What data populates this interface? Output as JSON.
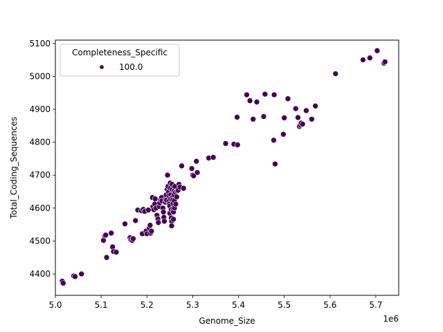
{
  "chart_data": {
    "type": "scatter",
    "xlabel": "Genome_Size",
    "ylabel": "Total_Coding_Sequences",
    "x_offset_label": "1e6",
    "xlim": [
      5.0,
      5.75
    ],
    "ylim": [
      4335,
      5110
    ],
    "x_ticks": [
      "5.0",
      "5.1",
      "5.2",
      "5.3",
      "5.4",
      "5.5",
      "5.6",
      "5.7"
    ],
    "y_ticks": [
      "4400",
      "4500",
      "4600",
      "4700",
      "4800",
      "4900",
      "5000",
      "5100"
    ],
    "grid": false,
    "legend": {
      "title": "Completeness_Specific",
      "placement": "top-left",
      "entries": [
        {
          "label": "100.0",
          "color": "#440154"
        }
      ]
    },
    "series": [
      {
        "name": "100.0",
        "color": "#440154",
        "points": [
          [
            5.015,
            4378
          ],
          [
            5.017,
            4372
          ],
          [
            5.04,
            4394
          ],
          [
            5.043,
            4392
          ],
          [
            5.057,
            4400
          ],
          [
            5.105,
            4502
          ],
          [
            5.108,
            4516
          ],
          [
            5.11,
            4518
          ],
          [
            5.112,
            4450
          ],
          [
            5.122,
            4524
          ],
          [
            5.125,
            4482
          ],
          [
            5.127,
            4468
          ],
          [
            5.133,
            4466
          ],
          [
            5.152,
            4552
          ],
          [
            5.163,
            4510
          ],
          [
            5.165,
            4504
          ],
          [
            5.168,
            4502
          ],
          [
            5.17,
            4507
          ],
          [
            5.175,
            4562
          ],
          [
            5.18,
            4594
          ],
          [
            5.188,
            4592
          ],
          [
            5.19,
            4522
          ],
          [
            5.192,
            4596
          ],
          [
            5.195,
            4590
          ],
          [
            5.198,
            4530
          ],
          [
            5.2,
            4522
          ],
          [
            5.203,
            4594
          ],
          [
            5.205,
            4540
          ],
          [
            5.207,
            4548
          ],
          [
            5.208,
            4524
          ],
          [
            5.21,
            4530
          ],
          [
            5.212,
            4632
          ],
          [
            5.213,
            4604
          ],
          [
            5.215,
            4595
          ],
          [
            5.217,
            4612
          ],
          [
            5.218,
            4628
          ],
          [
            5.22,
            4600
          ],
          [
            5.222,
            4578
          ],
          [
            5.224,
            4567
          ],
          [
            5.225,
            4556
          ],
          [
            5.227,
            4605
          ],
          [
            5.228,
            4616
          ],
          [
            5.23,
            4626
          ],
          [
            5.232,
            4632
          ],
          [
            5.233,
            4622
          ],
          [
            5.235,
            4600
          ],
          [
            5.236,
            4588
          ],
          [
            5.237,
            4572
          ],
          [
            5.238,
            4560
          ],
          [
            5.24,
            4618
          ],
          [
            5.241,
            4626
          ],
          [
            5.242,
            4640
          ],
          [
            5.243,
            4624
          ],
          [
            5.244,
            4657
          ],
          [
            5.245,
            4700
          ],
          [
            5.246,
            4666
          ],
          [
            5.247,
            4648
          ],
          [
            5.248,
            4638
          ],
          [
            5.248,
            4620
          ],
          [
            5.249,
            4612
          ],
          [
            5.25,
            4606
          ],
          [
            5.25,
            4584
          ],
          [
            5.251,
            4660
          ],
          [
            5.251,
            4676
          ],
          [
            5.252,
            4640
          ],
          [
            5.252,
            4628
          ],
          [
            5.253,
            4596
          ],
          [
            5.253,
            4570
          ],
          [
            5.254,
            4560
          ],
          [
            5.254,
            4546
          ],
          [
            5.255,
            4672
          ],
          [
            5.255,
            4656
          ],
          [
            5.256,
            4632
          ],
          [
            5.256,
            4624
          ],
          [
            5.257,
            4614
          ],
          [
            5.257,
            4598
          ],
          [
            5.258,
            4588
          ],
          [
            5.258,
            4566
          ],
          [
            5.259,
            4652
          ],
          [
            5.259,
            4640
          ],
          [
            5.26,
            4622
          ],
          [
            5.26,
            4600
          ],
          [
            5.261,
            4666
          ],
          [
            5.262,
            4648
          ],
          [
            5.263,
            4612
          ],
          [
            5.265,
            4634
          ],
          [
            5.266,
            4652
          ],
          [
            5.268,
            4654
          ],
          [
            5.27,
            4672
          ],
          [
            5.272,
            4664
          ],
          [
            5.276,
            4728
          ],
          [
            5.28,
            4660
          ],
          [
            5.298,
            4720
          ],
          [
            5.3,
            4700
          ],
          [
            5.302,
            4698
          ],
          [
            5.308,
            4742
          ],
          [
            5.31,
            4708
          ],
          [
            5.335,
            4752
          ],
          [
            5.345,
            4754
          ],
          [
            5.372,
            4796
          ],
          [
            5.39,
            4794
          ],
          [
            5.397,
            4876
          ],
          [
            5.398,
            4792
          ],
          [
            5.418,
            4944
          ],
          [
            5.425,
            4926
          ],
          [
            5.432,
            4870
          ],
          [
            5.44,
            4922
          ],
          [
            5.455,
            4878
          ],
          [
            5.458,
            4946
          ],
          [
            5.477,
            4806
          ],
          [
            5.478,
            4944
          ],
          [
            5.48,
            4734
          ],
          [
            5.498,
            4824
          ],
          [
            5.5,
            4874
          ],
          [
            5.508,
            4932
          ],
          [
            5.525,
            4902
          ],
          [
            5.53,
            4875
          ],
          [
            5.533,
            4848
          ],
          [
            5.535,
            4852
          ],
          [
            5.537,
            4858
          ],
          [
            5.54,
            4855
          ],
          [
            5.548,
            4896
          ],
          [
            5.56,
            4870
          ],
          [
            5.568,
            4910
          ],
          [
            5.612,
            5008
          ],
          [
            5.672,
            5050
          ],
          [
            5.687,
            5056
          ],
          [
            5.703,
            5078
          ],
          [
            5.718,
            5040
          ],
          [
            5.72,
            5044
          ]
        ]
      }
    ]
  }
}
